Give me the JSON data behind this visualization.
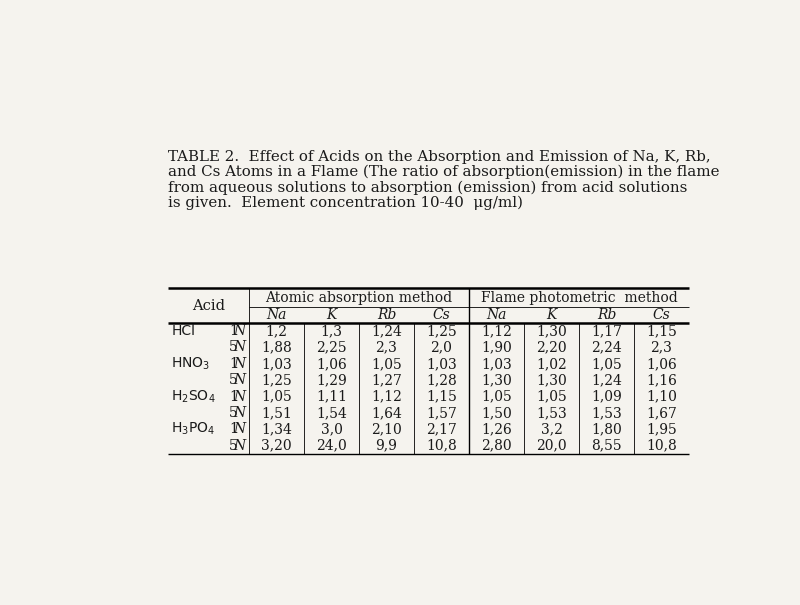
{
  "title_line1": "TABLE 2.  Effect of Acids on the Absorption and Emission of Na, K, Rb,",
  "title_line2": "and Cs Atoms in a Flame (The ratio of absorption(emission) in the flame",
  "title_line3": "from aqueous solutions to absorption (emission) from acid solutions",
  "title_line4": "is given.  Element concentration 10-40  μg/ml)",
  "col_group1": "Atomic absorption method",
  "col_group2": "Flame photometric  method",
  "col_header": [
    "Na",
    "K",
    "Rb",
    "Cs",
    "Na",
    "K",
    "Rb",
    "Cs"
  ],
  "acid_labels": [
    "HCl",
    "",
    "HNO₃",
    "",
    "H₂SO₄",
    "",
    "H₃PO₄",
    ""
  ],
  "acid_labels_math": [
    "HCl",
    "",
    "HNO$_3$",
    "",
    "H$_2$SO$_4$",
    "",
    "H$_3$PO$_4$",
    ""
  ],
  "norm_labels": [
    "1",
    "5",
    "1",
    "5",
    "1",
    "5",
    "1",
    "5"
  ],
  "data": [
    [
      "1,2",
      "1,3",
      "1,24",
      "1,25",
      "1,12",
      "1,30",
      "1,17",
      "1,15"
    ],
    [
      "1,88",
      "2,25",
      "2,3",
      "2,0",
      "1,90",
      "2,20",
      "2,24",
      "2,3"
    ],
    [
      "1,03",
      "1,06",
      "1,05",
      "1,03",
      "1,03",
      "1,02",
      "1,05",
      "1,06"
    ],
    [
      "1,25",
      "1,29",
      "1,27",
      "1,28",
      "1,30",
      "1,30",
      "1,24",
      "1,16"
    ],
    [
      "1,05",
      "1,11",
      "1,12",
      "1,15",
      "1,05",
      "1,05",
      "1,09",
      "1,10"
    ],
    [
      "1,51",
      "1,54",
      "1,64",
      "1,57",
      "1,50",
      "1,53",
      "1,53",
      "1,67"
    ],
    [
      "1,34",
      "3,0",
      "2,10",
      "2,17",
      "1,26",
      "3,2",
      "1,80",
      "1,95"
    ],
    [
      "3,20",
      "24,0",
      "9,9",
      "10,8",
      "2,80",
      "20,0",
      "8,55",
      "10,8"
    ]
  ],
  "bg_color": "#f5f3ee",
  "text_color": "#1a1a1a",
  "title_fontsize": 10.8,
  "table_fontsize": 10.0
}
